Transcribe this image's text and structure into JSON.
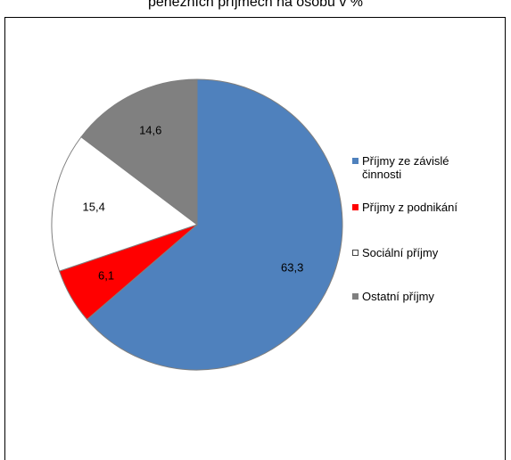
{
  "chart_data": {
    "type": "pie",
    "title": "peněžních příjmech na osobu v %",
    "categories": [
      "Příjmy ze závislé činnosti",
      "Příjmy z podnikání",
      "Sociální příjmy",
      "Ostatní příjmy"
    ],
    "values": [
      63.3,
      6.1,
      15.4,
      14.6
    ],
    "value_labels": [
      "63,3",
      "6,1",
      "15,4",
      "14,6"
    ],
    "colors": [
      "#4f81bd",
      "#ff0000",
      "#ffffff",
      "#808080"
    ],
    "legend": "right"
  }
}
